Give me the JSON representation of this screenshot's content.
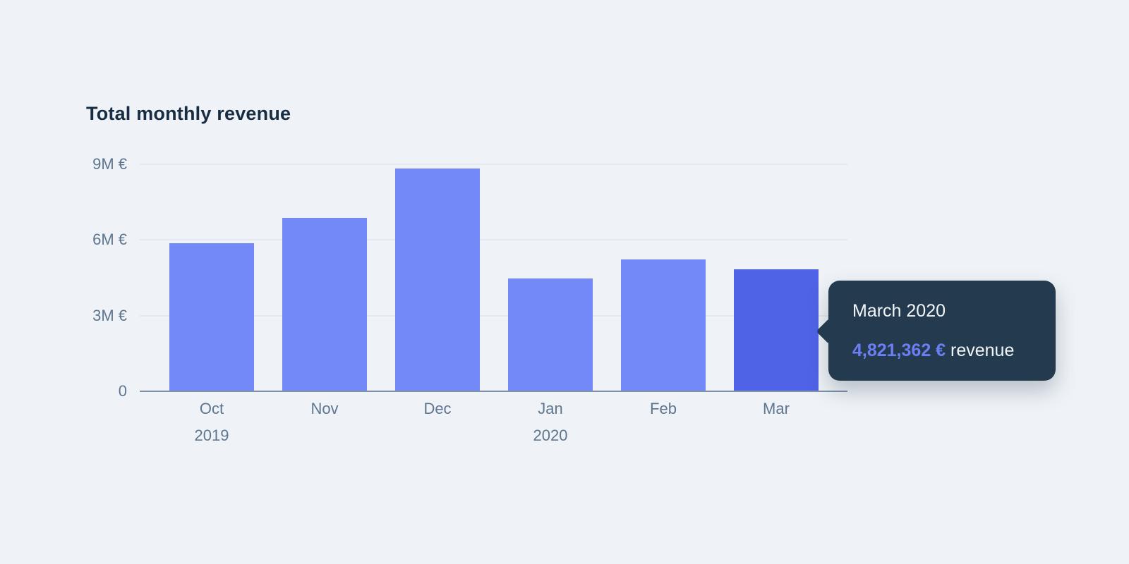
{
  "colors": {
    "background": "#eff3f7",
    "title_text": "#182c44",
    "axis_text": "#5e7690",
    "gridline": "#e3e8f1",
    "baseline": "#7f93a8",
    "bar": "#7489f8",
    "bar_highlighted": "#4f63e6",
    "tooltip_bg": "#243a4e",
    "tooltip_text": "#f2f6f9",
    "tooltip_value": "#6b7ff2"
  },
  "chart_data": {
    "type": "bar",
    "title": "Total monthly revenue",
    "categories": [
      "Oct",
      "Nov",
      "Dec",
      "Jan",
      "Feb",
      "Mar"
    ],
    "category_sublabels": [
      "2019",
      "",
      "",
      "2020",
      "",
      ""
    ],
    "values": [
      5850000,
      6850000,
      8800000,
      4450000,
      5200000,
      4821362
    ],
    "highlighted_index": 5,
    "ylim": [
      0,
      9000000
    ],
    "y_ticks": [
      {
        "label": "0",
        "value": 0
      },
      {
        "label": "3M €",
        "value": 3000000
      },
      {
        "label": "6M €",
        "value": 6000000
      },
      {
        "label": "9M €",
        "value": 9000000
      }
    ],
    "xlabel": "",
    "ylabel": "",
    "grid": true,
    "legend": false
  },
  "tooltip": {
    "title": "March 2020",
    "value": "4,821,362 €",
    "label": " revenue"
  }
}
